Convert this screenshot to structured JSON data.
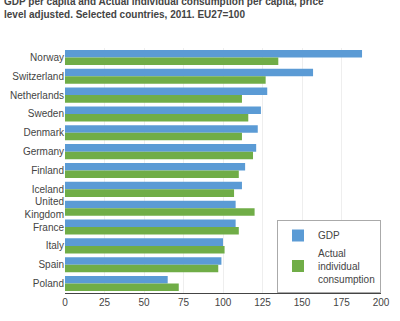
{
  "chart_data": {
    "type": "bar",
    "orientation": "horizontal",
    "title": "GDP per capita and Actual individual consumption per capita, price\nlevel adjusted. Selected countries, 2011. EU27=100",
    "categories": [
      "Norway",
      "Switzerland",
      "Netherlands",
      "Sweden",
      "Denmark",
      "Germany",
      "Finland",
      "Iceland",
      "United\nKingdom",
      "France",
      "Italy",
      "Spain",
      "Poland"
    ],
    "series": [
      {
        "name": "GDP",
        "color": "#5b9bd5",
        "values": [
          188,
          157,
          128,
          124,
          122,
          121,
          114,
          112,
          108,
          108,
          100,
          99,
          65
        ]
      },
      {
        "name": "Actual\nindividual\nconsumption",
        "color": "#70ad47",
        "values": [
          135,
          127,
          112,
          116,
          112,
          119,
          110,
          107,
          120,
          110,
          101,
          97,
          72
        ]
      }
    ],
    "xlim": [
      0,
      200
    ],
    "xticks": [
      0,
      25,
      50,
      75,
      100,
      125,
      150,
      175,
      200
    ],
    "grid": true,
    "legend": "lower right"
  }
}
